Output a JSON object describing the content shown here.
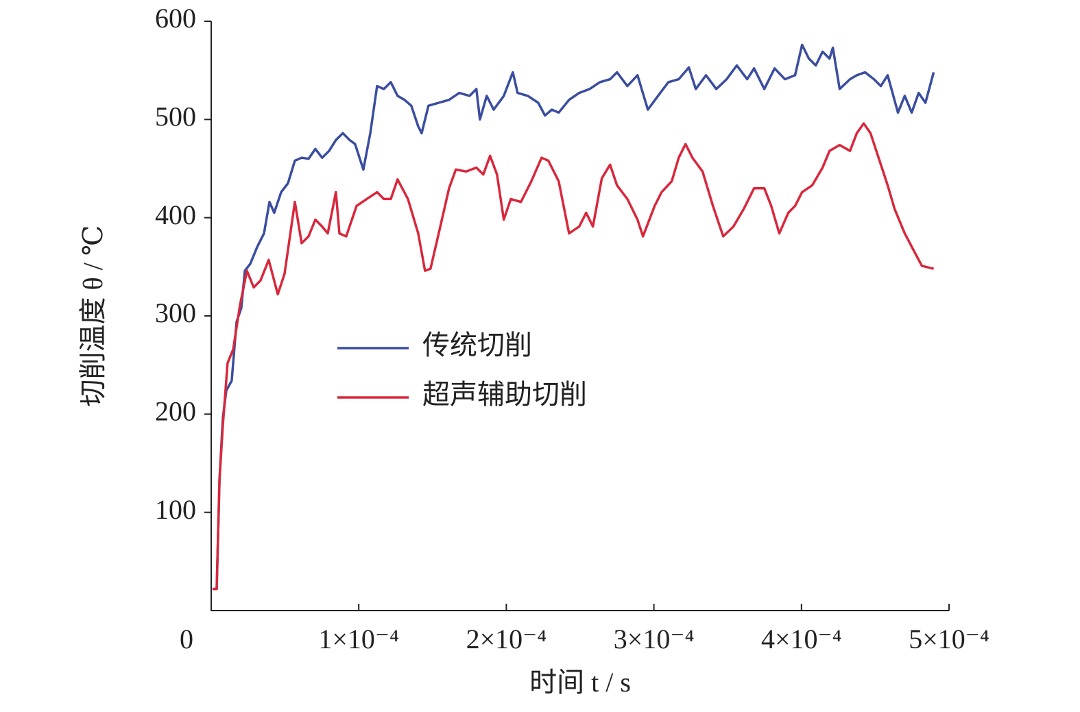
{
  "chart_data": {
    "type": "line",
    "xlabel": "时间 t / s",
    "ylabel": "切削温度 θ / ℃",
    "xlim": [
      0,
      0.0005
    ],
    "ylim": [
      0,
      600
    ],
    "xticks": [
      0,
      {
        "value": 0.0001,
        "label": "1×10⁻⁴"
      },
      {
        "value": 0.0002,
        "label": "2×10⁻⁴"
      },
      {
        "value": 0.0003,
        "label": "3×10⁻⁴"
      },
      {
        "value": 0.0004,
        "label": "4×10⁻⁴"
      },
      {
        "value": 0.0005,
        "label": "5×10⁻⁴"
      }
    ],
    "yticks": [
      100,
      200,
      300,
      400,
      500,
      600
    ],
    "grid": false,
    "legend": "center",
    "series": [
      {
        "name": "传统切削",
        "color": "#3a4d9f",
        "x": [
          9e-07,
          3.7e-06,
          5.6e-06,
          7.9e-06,
          1.02e-05,
          1.39e-05,
          1.72e-05,
          2.04e-05,
          2.28e-05,
          2.65e-05,
          3.11e-05,
          3.58e-05,
          3.95e-05,
          4.27e-05,
          4.74e-05,
          5.2e-05,
          5.67e-05,
          6.13e-05,
          6.6e-05,
          7.06e-05,
          7.52e-05,
          7.99e-05,
          8.45e-05,
          8.92e-05,
          9.38e-05,
          9.75e-05,
          0.0001031,
          0.0001078,
          0.0001124,
          0.000117,
          0.0001217,
          0.0001263,
          0.000131,
          0.0001356,
          0.0001403,
          0.0001426,
          0.0001472,
          0.0001542,
          0.0001612,
          0.0001681,
          0.0001751,
          0.0001797,
          0.0001821,
          0.0001867,
          0.0001914,
          0.0001983,
          0.0002044,
          0.0002076,
          0.0002146,
          0.0002216,
          0.0002262,
          0.0002308,
          0.0002355,
          0.0002425,
          0.0002494,
          0.0002564,
          0.0002634,
          0.0002703,
          0.000275,
          0.000282,
          0.0002889,
          0.0002959,
          0.0003028,
          0.0003098,
          0.0003168,
          0.0003237,
          0.0003284,
          0.0003353,
          0.0003423,
          0.0003493,
          0.0003562,
          0.0003632,
          0.0003679,
          0.0003748,
          0.0003818,
          0.0003888,
          0.0003957,
          0.0004004,
          0.000405,
          0.0004097,
          0.0004143,
          0.000419,
          0.0004213,
          0.0004259,
          0.0004329,
          0.0004375,
          0.0004431,
          0.0004491,
          0.0004538,
          0.0004584,
          0.0004654,
          0.00047,
          0.0004747,
          0.0004794,
          0.000484,
          0.0004896
        ],
        "values": [
          22,
          22,
          133,
          196,
          224,
          234,
          294,
          308,
          346,
          353,
          370,
          384,
          416,
          405,
          426,
          435,
          458,
          461,
          460,
          470,
          461,
          468,
          479,
          486,
          479,
          475,
          449,
          486,
          534,
          531,
          538,
          524,
          520,
          514,
          493,
          486,
          514,
          517,
          520,
          527,
          524,
          531,
          500,
          524,
          510,
          524,
          548,
          527,
          524,
          517,
          504,
          510,
          507,
          520,
          527,
          531,
          538,
          541,
          548,
          534,
          545,
          510,
          524,
          538,
          541,
          553,
          531,
          545,
          531,
          541,
          555,
          541,
          552,
          531,
          552,
          541,
          545,
          576,
          562,
          555,
          569,
          562,
          573,
          531,
          541,
          545,
          548,
          541,
          534,
          545,
          507,
          524,
          507,
          527,
          517,
          548
        ]
      },
      {
        "name": "超声辅助切削",
        "color": "#d8283c",
        "x": [
          9e-07,
          3.7e-06,
          5.6e-06,
          7.9e-06,
          1.11e-05,
          1.49e-05,
          1.95e-05,
          2.42e-05,
          2.88e-05,
          3.34e-05,
          3.9e-05,
          4.51e-05,
          4.97e-05,
          5.67e-05,
          6.13e-05,
          6.6e-05,
          7.06e-05,
          7.52e-05,
          7.9e-05,
          8.45e-05,
          8.69e-05,
          9.15e-05,
          9.85e-05,
          0.0001054,
          0.0001124,
          0.000117,
          0.0001217,
          0.0001263,
          0.0001333,
          0.0001403,
          0.0001449,
          0.0001486,
          0.0001542,
          0.0001612,
          0.0001658,
          0.0001728,
          0.0001797,
          0.0001844,
          0.000189,
          0.0001937,
          0.0001983,
          0.000203,
          0.0002099,
          0.0002169,
          0.0002239,
          0.0002285,
          0.0002355,
          0.0002425,
          0.0002494,
          0.0002541,
          0.0002587,
          0.0002647,
          0.0002703,
          0.000275,
          0.000282,
          0.0002889,
          0.0002926,
          0.0003005,
          0.0003052,
          0.0003121,
          0.0003168,
          0.0003214,
          0.0003261,
          0.000333,
          0.00034,
          0.000347,
          0.0003539,
          0.0003609,
          0.0003679,
          0.0003748,
          0.0003795,
          0.000385,
          0.0003911,
          0.0003957,
          0.0004004,
          0.0004073,
          0.0004143,
          0.000419,
          0.0004259,
          0.0004329,
          0.0004375,
          0.0004422,
          0.0004468,
          0.0004538,
          0.0004584,
          0.0004631,
          0.00047,
          0.000477,
          0.0004816,
          0.0004896
        ],
        "values": [
          22,
          22,
          133,
          189,
          252,
          266,
          311,
          346,
          329,
          336,
          357,
          322,
          343,
          416,
          374,
          381,
          398,
          391,
          384,
          426,
          384,
          381,
          412,
          419,
          426,
          419,
          419,
          439,
          419,
          384,
          346,
          348,
          384,
          430,
          449,
          447,
          451,
          444,
          463,
          444,
          398,
          419,
          416,
          437,
          461,
          458,
          437,
          384,
          391,
          405,
          391,
          440,
          454,
          433,
          419,
          398,
          381,
          412,
          426,
          437,
          461,
          475,
          461,
          447,
          412,
          381,
          391,
          409,
          430,
          430,
          412,
          384,
          405,
          412,
          426,
          433,
          451,
          468,
          474,
          468,
          486,
          496,
          486,
          454,
          433,
          409,
          384,
          364,
          351,
          348
        ]
      }
    ]
  }
}
